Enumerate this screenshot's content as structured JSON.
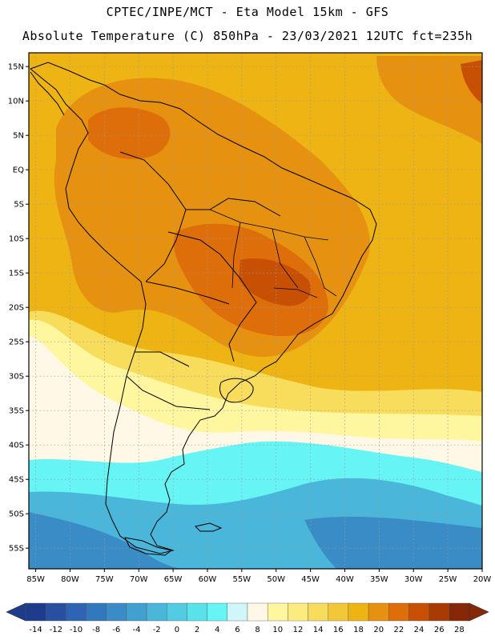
{
  "header": {
    "line1": "CPTEC/INPE/MCT -  Eta Model 15km - GFS",
    "line2": "Absolute Temperature (C) 850hPa - 23/03/2021 12UTC fct=235h"
  },
  "map": {
    "lat_labels": [
      "15N",
      "10N",
      "5N",
      "EQ",
      "5S",
      "10S",
      "15S",
      "20S",
      "25S",
      "30S",
      "35S",
      "40S",
      "45S",
      "50S",
      "55S"
    ],
    "lon_labels": [
      "85W",
      "80W",
      "75W",
      "70W",
      "65W",
      "60W",
      "55W",
      "50W",
      "45W",
      "40W",
      "35W",
      "30W",
      "25W",
      "20W"
    ],
    "lat_values": [
      15,
      10,
      5,
      0,
      -5,
      -10,
      -15,
      -20,
      -25,
      -30,
      -35,
      -40,
      -45,
      -50,
      -55
    ],
    "lon_values": [
      -85,
      -80,
      -75,
      -70,
      -65,
      -60,
      -55,
      -50,
      -45,
      -40,
      -35,
      -30,
      -25,
      -20
    ],
    "extent": {
      "lon_min": -86,
      "lon_max": -20,
      "lat_min": -58,
      "lat_max": 17
    }
  },
  "colorbar": {
    "labels": [
      "-14",
      "-12",
      "-10",
      "-8",
      "-6",
      "-4",
      "-2",
      "0",
      "2",
      "4",
      "6",
      "8",
      "10",
      "12",
      "14",
      "16",
      "18",
      "20",
      "22",
      "24",
      "26",
      "28"
    ],
    "colors": [
      "#1e3c8c",
      "#2850a0",
      "#2e64b2",
      "#3278bc",
      "#3a8cc6",
      "#42a0d0",
      "#4ab6da",
      "#52cce2",
      "#5ae2ea",
      "#66f4f4",
      "#d0f6fa",
      "#fff8e6",
      "#fff6a0",
      "#fcec80",
      "#f8dc5c",
      "#f2c838",
      "#eeb414",
      "#e69210",
      "#de6e0a",
      "#c85005",
      "#a83a04",
      "#862808"
    ]
  },
  "regions": [
    {
      "name": "far-south-ocean",
      "color": "#3a8cc6"
    },
    {
      "name": "south-ocean",
      "color": "#4ab6da"
    },
    {
      "name": "cyan-band",
      "color": "#66f4f4"
    },
    {
      "name": "pale-band",
      "color": "#fff8e6"
    },
    {
      "name": "yellow-band",
      "color": "#fff6a0"
    },
    {
      "name": "mid-band",
      "color": "#f8dc5c"
    },
    {
      "name": "warm-body",
      "color": "#eeb414"
    },
    {
      "name": "warm-orange",
      "color": "#e69210"
    },
    {
      "name": "hot-core",
      "color": "#de6e0a"
    },
    {
      "name": "hottest-core",
      "color": "#c85005"
    }
  ]
}
